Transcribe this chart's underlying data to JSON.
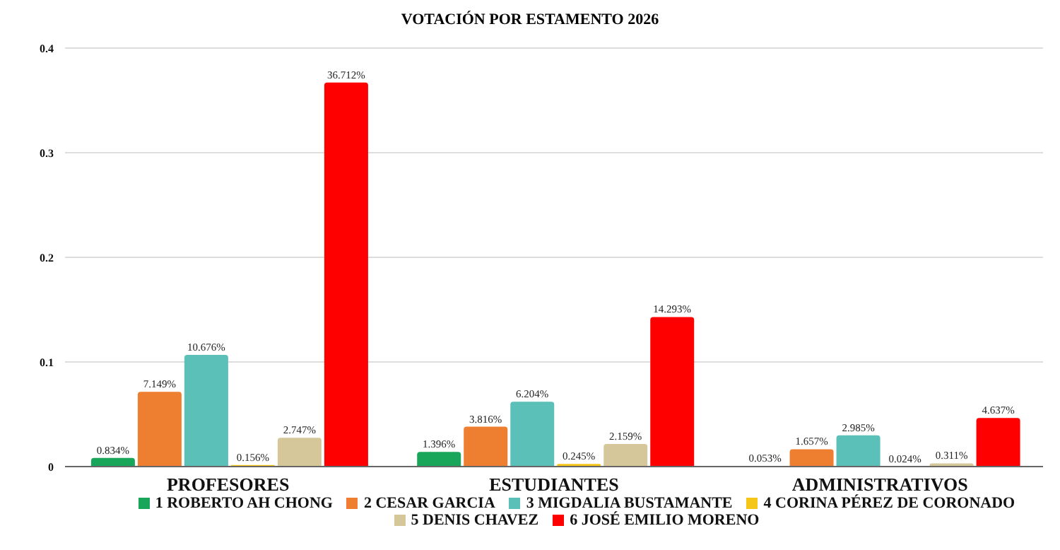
{
  "chart_data": {
    "type": "bar",
    "title": "VOTACIÓN POR ESTAMENTO 2026",
    "categories": [
      "PROFESORES",
      "ESTUDIANTES",
      "ADMINISTRATIVOS"
    ],
    "series": [
      {
        "name": "1 ROBERTO AH CHONG",
        "color": "#1aa65a",
        "values": [
          0.00834,
          0.01396,
          0.00053
        ],
        "value_labels": [
          "0.834%",
          "1.396%",
          "0.053%"
        ]
      },
      {
        "name": "2 CESAR GARCIA",
        "color": "#ef7f30",
        "values": [
          0.07149,
          0.03816,
          0.01657
        ],
        "value_labels": [
          "7.149%",
          "3.816%",
          "1.657%"
        ]
      },
      {
        "name": "3 MIGDALIA BUSTAMANTE",
        "color": "#5bc0b8",
        "values": [
          0.10676,
          0.06204,
          0.02985
        ],
        "value_labels": [
          "10.676%",
          "6.204%",
          "2.985%"
        ]
      },
      {
        "name": "4 CORINA PÉREZ DE CORONADO",
        "color": "#f5c518",
        "values": [
          0.00156,
          0.00245,
          0.00024
        ],
        "value_labels": [
          "0.156%",
          "0.245%",
          "0.024%"
        ]
      },
      {
        "name": "5 DENIS CHAVEZ",
        "color": "#d6c79a",
        "values": [
          0.02747,
          0.02159,
          0.00311
        ],
        "value_labels": [
          "2.747%",
          "2.159%",
          "0.311%"
        ]
      },
      {
        "name": "6 JOSÉ EMILIO MORENO",
        "color": "#ff0000",
        "values": [
          0.36712,
          0.14293,
          0.04637
        ],
        "value_labels": [
          "36.712%",
          "14.293%",
          "4.637%"
        ]
      }
    ],
    "ylim": [
      0,
      0.4
    ],
    "yticks": [
      0,
      0.1,
      0.2,
      0.3,
      0.4
    ],
    "grid": "y",
    "legend": "bottom"
  }
}
